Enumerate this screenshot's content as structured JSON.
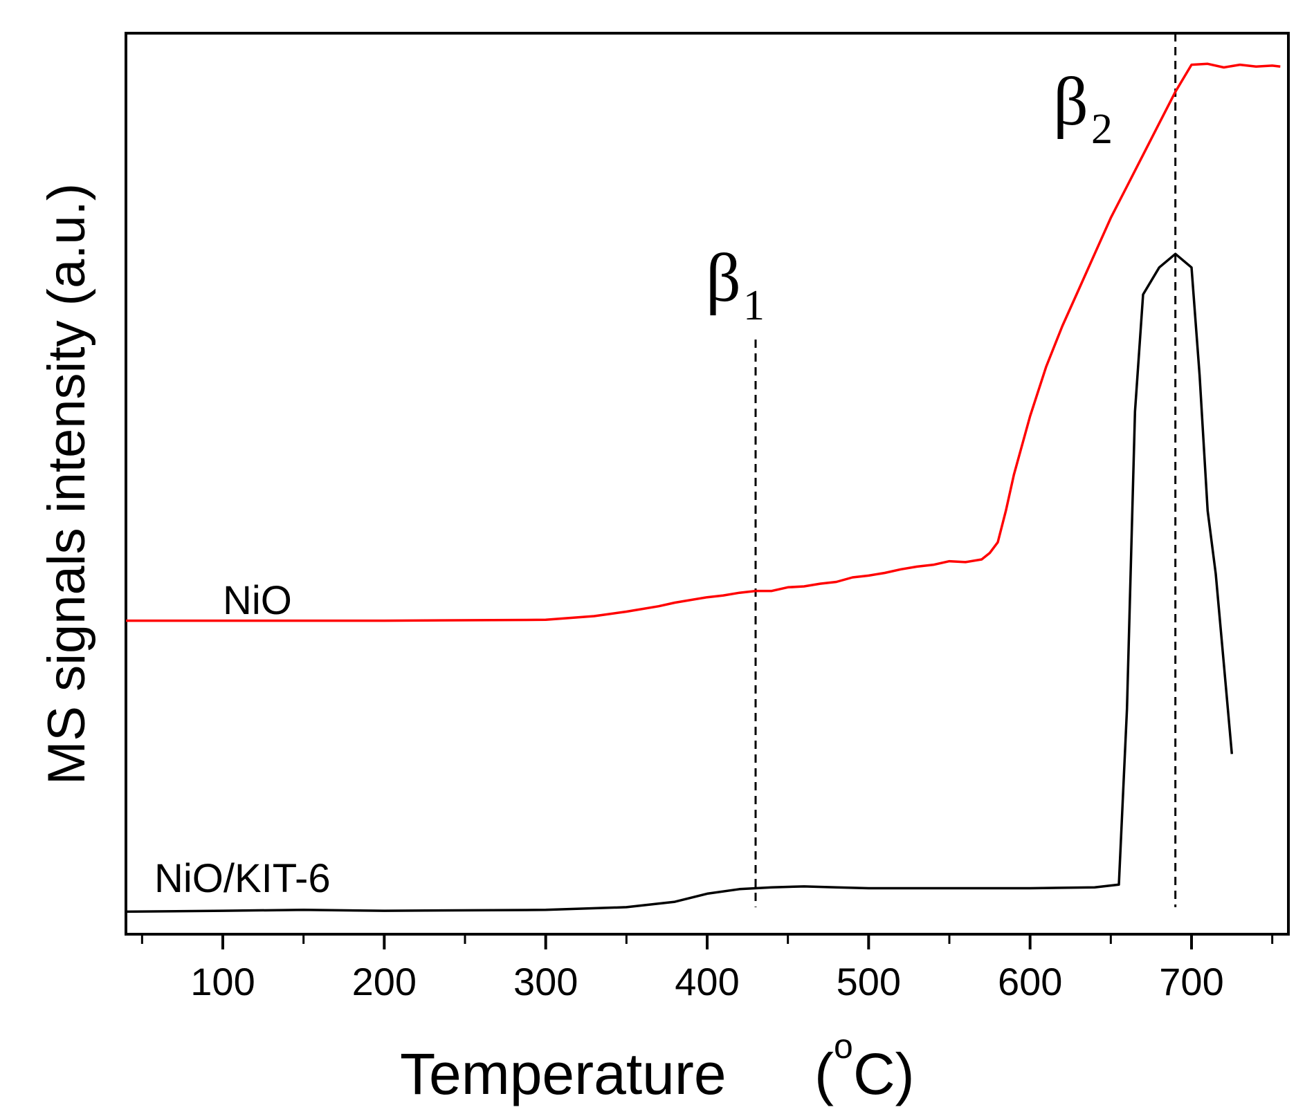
{
  "chart_data": {
    "type": "line",
    "title": "",
    "xlabel": "Temperature",
    "xunit": "(°C)",
    "xunit_open": "(",
    "xunit_degree": "o",
    "xunit_close": "C)",
    "ylabel": "MS signals intensity (a.u.)",
    "xlim": [
      40,
      760
    ],
    "ylim": [
      0,
      100
    ],
    "xticks": [
      100,
      200,
      300,
      400,
      500,
      600,
      700
    ],
    "xtick_labels": [
      "100",
      "200",
      "300",
      "400",
      "500",
      "600",
      "700"
    ],
    "minor_xticks": [
      50,
      150,
      250,
      350,
      450,
      550,
      650,
      750
    ],
    "yticks": [],
    "grid": false,
    "legend": "none",
    "series": [
      {
        "name": "NiO",
        "color": "#ff0000",
        "x": [
          40,
          100,
          200,
          300,
          330,
          350,
          370,
          380,
          400,
          410,
          420,
          430,
          440,
          450,
          460,
          470,
          480,
          490,
          500,
          510,
          520,
          530,
          540,
          550,
          560,
          570,
          575,
          580,
          585,
          590,
          600,
          610,
          620,
          630,
          640,
          650,
          660,
          670,
          680,
          690,
          700,
          710,
          720,
          730,
          740,
          750,
          755
        ],
        "values": [
          34.8,
          34.8,
          34.8,
          34.9,
          35.3,
          35.8,
          36.4,
          36.8,
          37.4,
          37.6,
          37.9,
          38.1,
          38.1,
          38.5,
          38.6,
          38.9,
          39.1,
          39.6,
          39.8,
          40.1,
          40.5,
          40.8,
          41.0,
          41.4,
          41.3,
          41.6,
          42.3,
          43.5,
          47.0,
          51.0,
          57.5,
          63.0,
          67.5,
          71.5,
          75.5,
          79.5,
          83.0,
          86.5,
          90.0,
          93.5,
          96.5,
          96.6,
          96.2,
          96.5,
          96.3,
          96.4,
          96.3
        ],
        "label": "NiO"
      },
      {
        "name": "NiO/KIT-6",
        "color": "#000000",
        "x": [
          40,
          100,
          150,
          200,
          300,
          350,
          380,
          400,
          420,
          440,
          460,
          480,
          500,
          550,
          600,
          640,
          655,
          660,
          665,
          670,
          680,
          690,
          700,
          705,
          710,
          715,
          720,
          725
        ],
        "values": [
          2.5,
          2.6,
          2.7,
          2.6,
          2.7,
          3.0,
          3.6,
          4.5,
          5.0,
          5.2,
          5.3,
          5.2,
          5.1,
          5.1,
          5.1,
          5.2,
          5.5,
          25.0,
          58.0,
          71.0,
          74.0,
          75.5,
          74.0,
          62.0,
          47.0,
          40.0,
          30.0,
          20.0
        ],
        "label": "NiO/KIT-6"
      }
    ],
    "annotations": [
      {
        "id": "beta1",
        "symbol": "β",
        "subscript": "1",
        "x": 430,
        "y_top": 66.0,
        "y_bottom": 3.0
      },
      {
        "id": "beta2",
        "symbol": "β",
        "subscript": "2",
        "x": 690,
        "y_top": 100,
        "y_bottom": 3.0
      }
    ]
  }
}
